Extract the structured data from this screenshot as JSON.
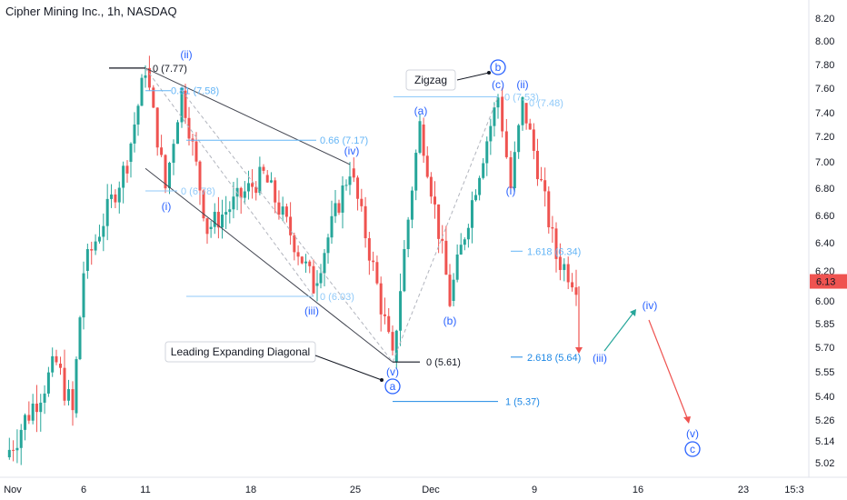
{
  "header": {
    "title": "Cipher Mining Inc., 1h, NASDAQ"
  },
  "chart_data": {
    "type": "candlestick",
    "symbol": "Cipher Mining Inc.",
    "interval": "1h",
    "exchange": "NASDAQ",
    "last_price": "6.13",
    "y_ticks": [
      "8.20",
      "8.00",
      "7.80",
      "7.60",
      "7.40",
      "7.20",
      "7.00",
      "6.80",
      "6.60",
      "6.40",
      "6.20",
      "6.00",
      "5.85",
      "5.70",
      "5.55",
      "5.40",
      "5.26",
      "5.14",
      "5.02"
    ],
    "x_ticks": [
      "Nov",
      "6",
      "11",
      "18",
      "25",
      "Dec",
      "9",
      "16",
      "23",
      "15:3"
    ],
    "colors": {
      "up": "#26a69a",
      "down": "#ef5350",
      "wave": "#2962ff",
      "fib": "#64b5f6",
      "line": "#434651"
    },
    "path_waypoints": [
      {
        "date": "Nov 1",
        "price": 5.05
      },
      {
        "date": "Nov 4",
        "price": 5.6
      },
      {
        "date": "Nov 5",
        "price": 5.3
      },
      {
        "date": "Nov 6",
        "price": 6.2
      },
      {
        "date": "Nov 8",
        "price": 7.0
      },
      {
        "date": "Nov 11",
        "price": 7.77
      },
      {
        "date": "Nov 12",
        "price": 6.8
      },
      {
        "date": "Nov 13",
        "price": 7.58
      },
      {
        "date": "Nov 15",
        "price": 6.5
      },
      {
        "date": "Nov 19",
        "price": 6.9
      },
      {
        "date": "Nov 22",
        "price": 6.1
      },
      {
        "date": "Nov 25",
        "price": 6.95
      },
      {
        "date": "Nov 27",
        "price": 5.61
      },
      {
        "date": "Nov 29",
        "price": 7.3
      },
      {
        "date": "Dec 2",
        "price": 6.0
      },
      {
        "date": "Dec 6",
        "price": 7.53
      },
      {
        "date": "Dec 7",
        "price": 6.8
      },
      {
        "date": "Dec 8",
        "price": 7.48
      },
      {
        "date": "Dec 10",
        "price": 6.3
      },
      {
        "date": "Dec 11",
        "price": 6.13
      }
    ],
    "wave_labels": [
      "(ii)",
      "(i)",
      "(iii)",
      "(iv)",
      "(v)",
      "(a)",
      "(b)",
      "(c)",
      "(ii)",
      "(i)",
      "(iii)",
      "(iv)",
      "(v)"
    ],
    "circled_labels": [
      "a",
      "b",
      "c"
    ],
    "fib_levels": [
      {
        "text": "0 (7.77)",
        "price": 7.77
      },
      {
        "text": "0.81 (7.58)",
        "price": 7.58
      },
      {
        "text": "0.66 (7.17)",
        "price": 7.17
      },
      {
        "text": "0 (6.78)",
        "price": 6.78
      },
      {
        "text": "0 (6.03)",
        "price": 6.03
      },
      {
        "text": "0 (7.53)",
        "price": 7.53
      },
      {
        "text": "0 (7.48)",
        "price": 7.48
      },
      {
        "text": "0 (5.61)",
        "price": 5.61
      },
      {
        "text": "1.618 (6.34)",
        "price": 6.34
      },
      {
        "text": "2.618 (5.64)",
        "price": 5.64
      },
      {
        "text": "1 (5.37)",
        "price": 5.37
      }
    ],
    "callouts": [
      "Zigzag",
      "Leading Expanding Diagonal"
    ]
  }
}
